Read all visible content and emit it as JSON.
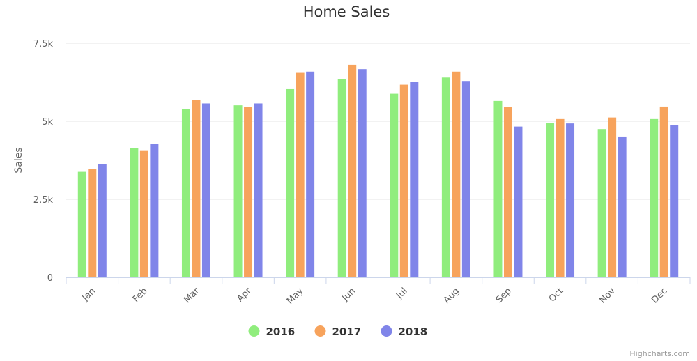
{
  "chart_data": {
    "type": "bar",
    "title": "Home Sales",
    "ylabel": "Sales",
    "xlabel": "",
    "ylim": [
      0,
      7500
    ],
    "yticks": [
      {
        "value": 0,
        "label": "0"
      },
      {
        "value": 2500,
        "label": "2.5k"
      },
      {
        "value": 5000,
        "label": "5k"
      },
      {
        "value": 7500,
        "label": "7.5k"
      }
    ],
    "categories": [
      "Jan",
      "Feb",
      "Mar",
      "Apr",
      "May",
      "Jun",
      "Jul",
      "Aug",
      "Sep",
      "Oct",
      "Nov",
      "Dec"
    ],
    "series": [
      {
        "name": "2016",
        "color": "#90ed7d",
        "values": [
          3380,
          4140,
          5400,
          5510,
          6050,
          6340,
          5880,
          6400,
          5650,
          4950,
          4750,
          5070
        ]
      },
      {
        "name": "2017",
        "color": "#f7a35c",
        "values": [
          3480,
          4070,
          5680,
          5450,
          6550,
          6810,
          6170,
          6590,
          5450,
          5070,
          5120,
          5470
        ]
      },
      {
        "name": "2018",
        "color": "#8085e9",
        "values": [
          3630,
          4280,
          5570,
          5570,
          6590,
          6670,
          6250,
          6290,
          4830,
          4930,
          4510,
          4870
        ]
      }
    ],
    "grid": true,
    "legend": "bottom-center"
  },
  "credits": "Highcharts.com"
}
